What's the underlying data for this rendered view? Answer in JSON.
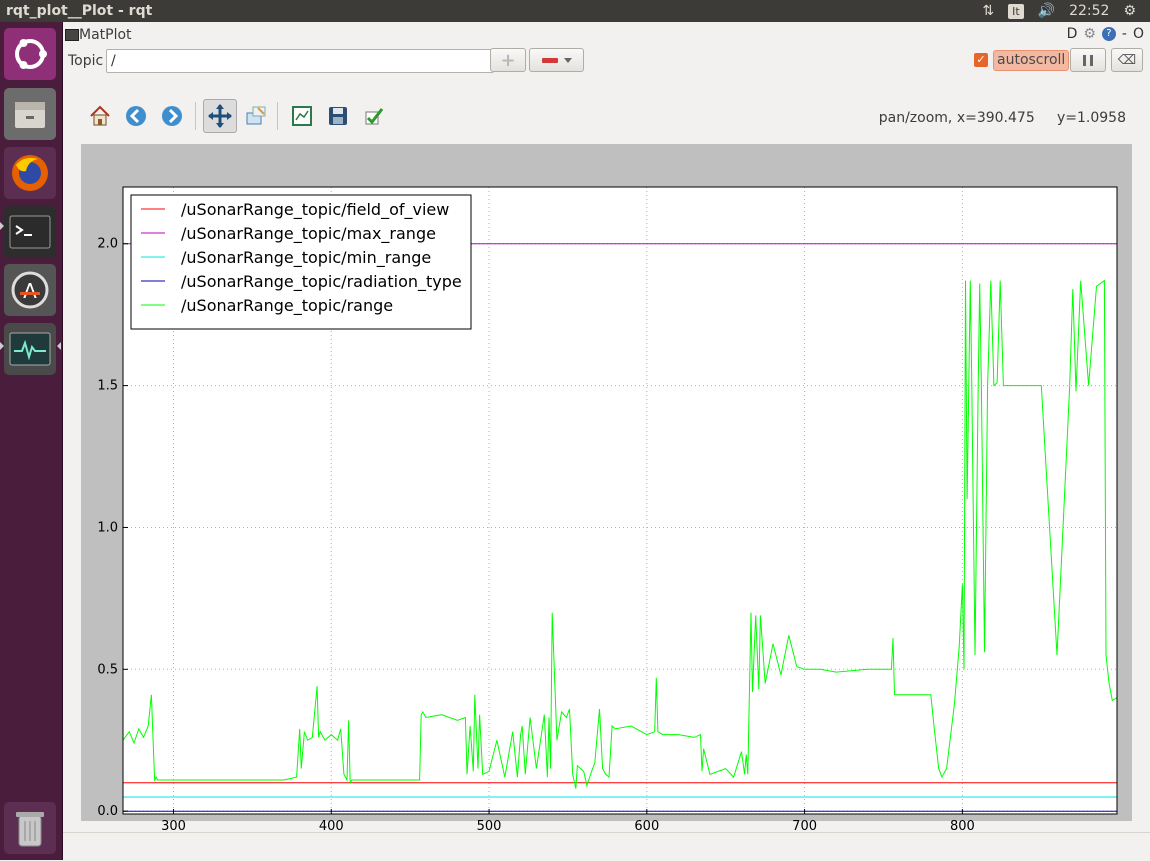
{
  "window": {
    "title": "rqt_plot__Plot - rqt"
  },
  "tray": {
    "keyboard": "It",
    "time": "22:52"
  },
  "launcher": {
    "items": [
      "ubuntu-dash",
      "files",
      "firefox",
      "terminal",
      "software-updater",
      "system-monitor",
      "trash"
    ]
  },
  "plugin": {
    "title": "MatPlot",
    "ctrl_d": "D",
    "ctrl_help": "?",
    "ctrl_min": "-",
    "ctrl_close": "O"
  },
  "topic": {
    "label": "Topic",
    "value": "/",
    "add_label": "+",
    "autoscroll_label": "autoscroll",
    "autoscroll_checked": true
  },
  "toolbar": {
    "status": "pan/zoom, x=390.475     y=1.0958",
    "tools": [
      "home-icon",
      "back-icon",
      "forward-icon",
      "pan-icon",
      "zoom-icon",
      "subplots-icon",
      "save-icon",
      "edit-icon"
    ]
  },
  "chart_data": {
    "type": "line",
    "xlim": [
      268,
      898
    ],
    "ylim": [
      -0.01,
      2.2
    ],
    "xticks": [
      "300",
      "400",
      "500",
      "600",
      "700",
      "800"
    ],
    "yticks": [
      "0.0",
      "0.5",
      "1.0",
      "1.5",
      "2.0"
    ],
    "grid": true,
    "legend_position": "top-left",
    "series": [
      {
        "name": "/uSonarRange_topic/field_of_view",
        "color": "#ff0000",
        "x": [
          268,
          898
        ],
        "y": [
          0.1,
          0.1
        ]
      },
      {
        "name": "/uSonarRange_topic/max_range",
        "color": "#bf00bf",
        "x": [
          268,
          898
        ],
        "y": [
          2.0,
          2.0
        ]
      },
      {
        "name": "/uSonarRange_topic/min_range",
        "color": "#00e5e5",
        "x": [
          268,
          898
        ],
        "y": [
          0.05,
          0.05
        ]
      },
      {
        "name": "/uSonarRange_topic/radiation_type",
        "color": "#0000b3",
        "x": [
          268,
          898
        ],
        "y": [
          0.0,
          0.0
        ]
      },
      {
        "name": "/uSonarRange_topic/range",
        "color": "#00ff00",
        "x": [
          268,
          272,
          275,
          278,
          281,
          284,
          286,
          288,
          289,
          290,
          295,
          300,
          320,
          340,
          360,
          370,
          378,
          380,
          381,
          383,
          385,
          388,
          391,
          392,
          393,
          396,
          400,
          404,
          406,
          408,
          410,
          411,
          412,
          413,
          415,
          420,
          440,
          456,
          457,
          458,
          460,
          470,
          480,
          485,
          486,
          488,
          490,
          491,
          493,
          494,
          496,
          500,
          505,
          510,
          515,
          518,
          520,
          521,
          523,
          526,
          530,
          535,
          537,
          538,
          539,
          540,
          543,
          546,
          549,
          551,
          553,
          555,
          556,
          560,
          562,
          565,
          567,
          570,
          572,
          574,
          576,
          578,
          580,
          590,
          600,
          605,
          606,
          607,
          610,
          620,
          630,
          634,
          635,
          636,
          640,
          650,
          655,
          660,
          662,
          663,
          664,
          666,
          667,
          669,
          671,
          672,
          675,
          680,
          685,
          690,
          695,
          700,
          710,
          720,
          740,
          755,
          756,
          757,
          760,
          770,
          780,
          782,
          785,
          787,
          790,
          795,
          798,
          800,
          801,
          802,
          803,
          804,
          805,
          806,
          808,
          810,
          811,
          812,
          814,
          816,
          818,
          820,
          822,
          824,
          826,
          830,
          840,
          850,
          860,
          868,
          870,
          872,
          875,
          880,
          885,
          890,
          891,
          893,
          895,
          898
        ],
        "y": [
          0.25,
          0.28,
          0.24,
          0.29,
          0.26,
          0.3,
          0.41,
          0.11,
          0.12,
          0.11,
          0.11,
          0.11,
          0.11,
          0.11,
          0.11,
          0.11,
          0.12,
          0.29,
          0.15,
          0.28,
          0.25,
          0.26,
          0.44,
          0.26,
          0.28,
          0.25,
          0.27,
          0.25,
          0.29,
          0.13,
          0.11,
          0.32,
          0.1,
          0.11,
          0.11,
          0.11,
          0.11,
          0.11,
          0.34,
          0.35,
          0.33,
          0.34,
          0.32,
          0.33,
          0.13,
          0.3,
          0.14,
          0.41,
          0.15,
          0.34,
          0.13,
          0.14,
          0.25,
          0.12,
          0.28,
          0.12,
          0.27,
          0.3,
          0.13,
          0.33,
          0.15,
          0.34,
          0.12,
          0.33,
          0.15,
          0.7,
          0.25,
          0.35,
          0.33,
          0.36,
          0.13,
          0.08,
          0.16,
          0.14,
          0.09,
          0.14,
          0.17,
          0.36,
          0.15,
          0.13,
          0.12,
          0.3,
          0.29,
          0.3,
          0.27,
          0.28,
          0.47,
          0.28,
          0.27,
          0.27,
          0.26,
          0.27,
          0.14,
          0.22,
          0.13,
          0.15,
          0.12,
          0.21,
          0.13,
          0.2,
          0.13,
          0.7,
          0.42,
          0.69,
          0.43,
          0.69,
          0.45,
          0.59,
          0.48,
          0.62,
          0.51,
          0.5,
          0.5,
          0.49,
          0.5,
          0.5,
          0.61,
          0.41,
          0.41,
          0.41,
          0.41,
          0.3,
          0.15,
          0.12,
          0.15,
          0.38,
          0.58,
          0.8,
          0.5,
          1.87,
          1.1,
          1.48,
          1.87,
          1.5,
          0.55,
          1.5,
          1.86,
          1.52,
          0.56,
          1.5,
          1.87,
          1.5,
          1.51,
          1.87,
          1.5,
          1.5,
          1.5,
          1.5,
          0.55,
          1.5,
          1.84,
          1.48,
          1.87,
          1.5,
          1.85,
          1.87,
          0.55,
          0.45,
          0.39,
          0.4
        ]
      }
    ]
  }
}
